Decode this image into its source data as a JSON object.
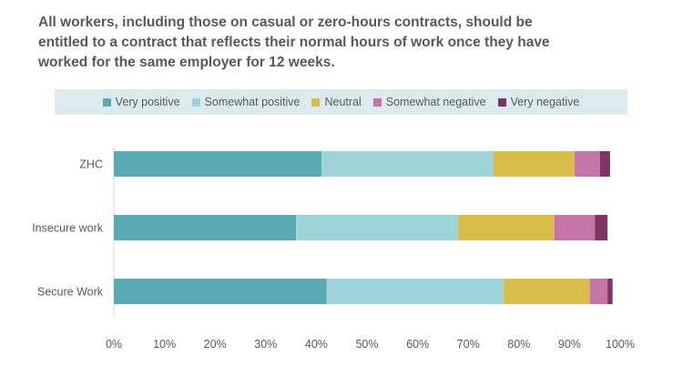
{
  "chart_data": {
    "type": "bar",
    "orientation": "horizontal",
    "stacked": true,
    "title": "All workers, including those on casual or zero-hours contracts, should be entitled to a contract that reflects their normal hours of work once they have worked for the same employer for 12 weeks.",
    "categories": [
      "ZHC",
      "Insecure work",
      "Secure Work"
    ],
    "series": [
      {
        "name": "Very positive",
        "color": "#5aaab3",
        "values": [
          41,
          36,
          42
        ]
      },
      {
        "name": "Somewhat positive",
        "color": "#9dd3d9",
        "values": [
          34,
          32,
          35
        ]
      },
      {
        "name": "Neutral",
        "color": "#d6be49",
        "values": [
          16,
          19,
          17
        ]
      },
      {
        "name": "Somewhat negative",
        "color": "#c774a8",
        "values": [
          5,
          8,
          3.5
        ]
      },
      {
        "name": "Very negative",
        "color": "#7f3466",
        "values": [
          2,
          2.5,
          1
        ]
      }
    ],
    "x_ticks": [
      "0%",
      "10%",
      "20%",
      "30%",
      "40%",
      "50%",
      "60%",
      "70%",
      "80%",
      "90%",
      "100%"
    ],
    "xlim": [
      0,
      100
    ],
    "legend_position": "top",
    "grid": false
  }
}
